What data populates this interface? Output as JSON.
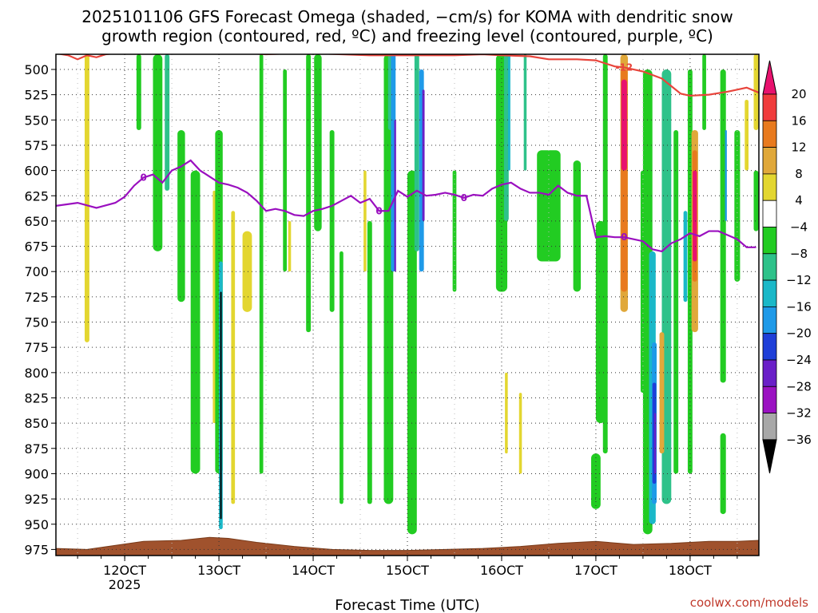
{
  "title_line1": "2025101106 GFS Forecast Omega (shaded, −cm/s) for KOMA with dendritic snow",
  "title_line2": "growth region (contoured, red, ºC) and freezing level (contoured, purple, ºC)",
  "watermark": "coolwx.com/models",
  "colors": {
    "dendritic": "#e8453c",
    "freezing": "#9a0fbf",
    "ground": "#a0522d"
  },
  "chart_data": {
    "type": "heatmap",
    "title": "2025101106 GFS Forecast Omega (shaded, −cm/s) for KOMA with dendritic snow growth region (contoured, red, ºC) and freezing level (contoured, purple, ºC)",
    "xlabel": "Forecast Time (UTC)",
    "ylabel": "",
    "x_ticks": [
      {
        "label": "12OCT",
        "sub": "2025",
        "day": 12
      },
      {
        "label": "13OCT",
        "sub": "",
        "day": 13
      },
      {
        "label": "14OCT",
        "sub": "",
        "day": 14
      },
      {
        "label": "15OCT",
        "sub": "",
        "day": 15
      },
      {
        "label": "16OCT",
        "sub": "",
        "day": 16
      },
      {
        "label": "17OCT",
        "sub": "",
        "day": 17
      },
      {
        "label": "18OCT",
        "sub": "",
        "day": 18
      }
    ],
    "xlim": [
      11.27,
      18.73
    ],
    "ylim": [
      981,
      485
    ],
    "y_ticks": [
      500,
      525,
      550,
      575,
      600,
      625,
      650,
      675,
      700,
      725,
      750,
      775,
      800,
      825,
      850,
      875,
      900,
      925,
      950,
      975
    ],
    "colorbar": {
      "labels": [
        "20",
        "16",
        "12",
        "8",
        "4",
        "−4",
        "−8",
        "−12",
        "−16",
        "−20",
        "−24",
        "−28",
        "−32",
        "−36"
      ],
      "bins": [
        {
          "low": 20,
          "high": 99,
          "color": "#e8126e"
        },
        {
          "low": 16,
          "high": 20,
          "color": "#f03c3c"
        },
        {
          "low": 12,
          "high": 16,
          "color": "#e87a1e"
        },
        {
          "low": 8,
          "high": 12,
          "color": "#e0a83a"
        },
        {
          "low": 4,
          "high": 8,
          "color": "#e3d630"
        },
        {
          "low": -4,
          "high": 4,
          "color": "#ffffff"
        },
        {
          "low": -8,
          "high": -4,
          "color": "#22cc22"
        },
        {
          "low": -12,
          "high": -8,
          "color": "#2ec28a"
        },
        {
          "low": -16,
          "high": -12,
          "color": "#1ab8c8"
        },
        {
          "low": -20,
          "high": -16,
          "color": "#1f9ae8"
        },
        {
          "low": -24,
          "high": -20,
          "color": "#1f3fd8"
        },
        {
          "low": -28,
          "high": -24,
          "color": "#6a1fc8"
        },
        {
          "low": -32,
          "high": -28,
          "color": "#9b12c2"
        },
        {
          "low": -36,
          "high": -32,
          "color": "#a8a8a8"
        },
        {
          "low": -99,
          "high": -36,
          "color": "#000000"
        }
      ]
    },
    "omega_features": [
      {
        "t": 11.6,
        "p0": 485,
        "p1": 770,
        "v": 5,
        "w": 0.05
      },
      {
        "t": 12.15,
        "p0": 485,
        "p1": 560,
        "v": -6,
        "w": 0.05
      },
      {
        "t": 12.35,
        "p0": 485,
        "p1": 680,
        "v": -6,
        "w": 0.1
      },
      {
        "t": 12.45,
        "p0": 485,
        "p1": 620,
        "v": -10,
        "w": 0.05
      },
      {
        "t": 12.6,
        "p0": 560,
        "p1": 730,
        "v": -6,
        "w": 0.08
      },
      {
        "t": 12.75,
        "p0": 600,
        "p1": 900,
        "v": -6,
        "w": 0.1
      },
      {
        "t": 12.95,
        "p0": 620,
        "p1": 850,
        "v": 5,
        "w": 0.03
      },
      {
        "t": 13.0,
        "p0": 560,
        "p1": 900,
        "v": -6,
        "w": 0.08
      },
      {
        "t": 13.02,
        "p0": 690,
        "p1": 955,
        "v": -16,
        "w": 0.04
      },
      {
        "t": 13.02,
        "p0": 720,
        "p1": 945,
        "v": -40,
        "w": 0.015
      },
      {
        "t": 13.15,
        "p0": 640,
        "p1": 930,
        "v": 5,
        "w": 0.04
      },
      {
        "t": 13.3,
        "p0": 660,
        "p1": 740,
        "v": 5,
        "w": 0.1
      },
      {
        "t": 13.45,
        "p0": 485,
        "p1": 900,
        "v": -6,
        "w": 0.04
      },
      {
        "t": 13.7,
        "p0": 500,
        "p1": 700,
        "v": -6,
        "w": 0.04
      },
      {
        "t": 13.75,
        "p0": 650,
        "p1": 700,
        "v": 5,
        "w": 0.03
      },
      {
        "t": 13.95,
        "p0": 485,
        "p1": 760,
        "v": -6,
        "w": 0.05
      },
      {
        "t": 14.05,
        "p0": 485,
        "p1": 660,
        "v": -6,
        "w": 0.08
      },
      {
        "t": 14.2,
        "p0": 560,
        "p1": 740,
        "v": -6,
        "w": 0.05
      },
      {
        "t": 14.3,
        "p0": 680,
        "p1": 930,
        "v": -6,
        "w": 0.04
      },
      {
        "t": 14.55,
        "p0": 600,
        "p1": 700,
        "v": 5,
        "w": 0.03
      },
      {
        "t": 14.6,
        "p0": 650,
        "p1": 930,
        "v": -6,
        "w": 0.05
      },
      {
        "t": 14.8,
        "p0": 485,
        "p1": 930,
        "v": -6,
        "w": 0.1
      },
      {
        "t": 14.82,
        "p0": 485,
        "p1": 560,
        "v": -10,
        "w": 0.05
      },
      {
        "t": 14.85,
        "p0": 485,
        "p1": 700,
        "v": -18,
        "w": 0.05
      },
      {
        "t": 14.87,
        "p0": 550,
        "p1": 700,
        "v": -26,
        "w": 0.02
      },
      {
        "t": 15.05,
        "p0": 600,
        "p1": 960,
        "v": -6,
        "w": 0.1
      },
      {
        "t": 15.1,
        "p0": 485,
        "p1": 680,
        "v": -10,
        "w": 0.05
      },
      {
        "t": 15.15,
        "p0": 500,
        "p1": 700,
        "v": -18,
        "w": 0.05
      },
      {
        "t": 15.17,
        "p0": 520,
        "p1": 650,
        "v": -26,
        "w": 0.025
      },
      {
        "t": 15.5,
        "p0": 600,
        "p1": 720,
        "v": -6,
        "w": 0.04
      },
      {
        "t": 16.0,
        "p0": 485,
        "p1": 720,
        "v": -6,
        "w": 0.12
      },
      {
        "t": 16.05,
        "p0": 485,
        "p1": 650,
        "v": -10,
        "w": 0.05
      },
      {
        "t": 16.08,
        "p0": 485,
        "p1": 600,
        "v": -14,
        "w": 0.025
      },
      {
        "t": 16.05,
        "p0": 800,
        "p1": 880,
        "v": 5,
        "w": 0.03
      },
      {
        "t": 16.2,
        "p0": 820,
        "p1": 900,
        "v": 5,
        "w": 0.03
      },
      {
        "t": 16.25,
        "p0": 485,
        "p1": 600,
        "v": -10,
        "w": 0.03
      },
      {
        "t": 16.5,
        "p0": 580,
        "p1": 690,
        "v": -6,
        "w": 0.25
      },
      {
        "t": 16.8,
        "p0": 590,
        "p1": 720,
        "v": -6,
        "w": 0.08
      },
      {
        "t": 17.05,
        "p0": 650,
        "p1": 850,
        "v": -6,
        "w": 0.1
      },
      {
        "t": 17.1,
        "p0": 485,
        "p1": 880,
        "v": -6,
        "w": 0.05
      },
      {
        "t": 17.0,
        "p0": 880,
        "p1": 935,
        "v": -6,
        "w": 0.1
      },
      {
        "t": 17.3,
        "p0": 485,
        "p1": 740,
        "v": 8,
        "w": 0.08
      },
      {
        "t": 17.3,
        "p0": 500,
        "p1": 720,
        "v": 13,
        "w": 0.07
      },
      {
        "t": 17.3,
        "p0": 510,
        "p1": 600,
        "v": 22,
        "w": 0.06
      },
      {
        "t": 17.5,
        "p0": 600,
        "p1": 820,
        "v": -6,
        "w": 0.05
      },
      {
        "t": 17.55,
        "p0": 500,
        "p1": 960,
        "v": -6,
        "w": 0.1
      },
      {
        "t": 17.6,
        "p0": 680,
        "p1": 950,
        "v": -14,
        "w": 0.07
      },
      {
        "t": 17.62,
        "p0": 770,
        "p1": 930,
        "v": -18,
        "w": 0.05
      },
      {
        "t": 17.62,
        "p0": 810,
        "p1": 910,
        "v": -22,
        "w": 0.04
      },
      {
        "t": 17.63,
        "p0": 840,
        "p1": 900,
        "v": -26,
        "w": 0.02
      },
      {
        "t": 17.75,
        "p0": 500,
        "p1": 930,
        "v": -10,
        "w": 0.1
      },
      {
        "t": 17.85,
        "p0": 560,
        "p1": 900,
        "v": -6,
        "w": 0.05
      },
      {
        "t": 18.0,
        "p0": 500,
        "p1": 900,
        "v": -6,
        "w": 0.05
      },
      {
        "t": 17.95,
        "p0": 640,
        "p1": 730,
        "v": -14,
        "w": 0.04
      },
      {
        "t": 17.7,
        "p0": 760,
        "p1": 880,
        "v": 10,
        "w": 0.05
      },
      {
        "t": 18.05,
        "p0": 560,
        "p1": 760,
        "v": 8,
        "w": 0.07
      },
      {
        "t": 18.05,
        "p0": 580,
        "p1": 710,
        "v": 13,
        "w": 0.05
      },
      {
        "t": 18.05,
        "p0": 600,
        "p1": 690,
        "v": 22,
        "w": 0.045
      },
      {
        "t": 18.15,
        "p0": 485,
        "p1": 560,
        "v": -6,
        "w": 0.04
      },
      {
        "t": 18.35,
        "p0": 500,
        "p1": 810,
        "v": -6,
        "w": 0.06
      },
      {
        "t": 18.38,
        "p0": 560,
        "p1": 650,
        "v": -18,
        "w": 0.02
      },
      {
        "t": 18.35,
        "p0": 860,
        "p1": 940,
        "v": -6,
        "w": 0.06
      },
      {
        "t": 18.5,
        "p0": 560,
        "p1": 710,
        "v": -6,
        "w": 0.06
      },
      {
        "t": 18.7,
        "p0": 485,
        "p1": 560,
        "v": 5,
        "w": 0.05
      },
      {
        "t": 18.6,
        "p0": 530,
        "p1": 600,
        "v": 5,
        "w": 0.04
      },
      {
        "t": 18.7,
        "p0": 600,
        "p1": 660,
        "v": -6,
        "w": 0.05
      }
    ],
    "freezing_level": {
      "label": "0",
      "t": [
        11.27,
        11.5,
        11.7,
        11.9,
        12.0,
        12.1,
        12.2,
        12.3,
        12.4,
        12.5,
        12.6,
        12.7,
        12.8,
        12.9,
        13.0,
        13.1,
        13.2,
        13.3,
        13.4,
        13.5,
        13.6,
        13.7,
        13.8,
        13.9,
        14.0,
        14.1,
        14.2,
        14.3,
        14.4,
        14.5,
        14.6,
        14.7,
        14.8,
        14.9,
        15.0,
        15.1,
        15.2,
        15.3,
        15.4,
        15.5,
        15.6,
        15.7,
        15.8,
        15.9,
        16.0,
        16.1,
        16.2,
        16.3,
        16.4,
        16.5,
        16.6,
        16.7,
        16.8,
        16.9,
        17.0,
        17.1,
        17.2,
        17.3,
        17.4,
        17.5,
        17.6,
        17.7,
        17.8,
        17.9,
        18.0,
        18.1,
        18.2,
        18.3,
        18.4,
        18.5,
        18.6,
        18.7
      ],
      "p": [
        635,
        632,
        637,
        632,
        626,
        615,
        607,
        604,
        612,
        600,
        596,
        590,
        600,
        606,
        612,
        614,
        617,
        622,
        630,
        640,
        638,
        640,
        644,
        645,
        640,
        638,
        635,
        630,
        625,
        632,
        628,
        640,
        640,
        620,
        626,
        620,
        625,
        624,
        622,
        624,
        627,
        624,
        625,
        618,
        614,
        612,
        618,
        622,
        622,
        624,
        615,
        622,
        625,
        625,
        666,
        665,
        666,
        666,
        668,
        670,
        678,
        680,
        672,
        668,
        662,
        665,
        660,
        660,
        664,
        668,
        676,
        676
      ]
    },
    "dendritic_contour": {
      "label": "-12",
      "t": [
        11.27,
        11.4,
        11.5,
        11.6,
        11.7,
        11.8,
        12.0,
        12.2,
        12.5,
        12.8,
        13.0,
        13.3,
        13.5,
        13.8,
        14.0,
        14.3,
        14.6,
        14.9,
        15.2,
        15.5,
        15.8,
        16.0,
        16.3,
        16.5,
        16.8,
        17.0,
        17.2,
        17.3,
        17.5,
        17.7,
        17.9,
        18.0,
        18.2,
        18.4,
        18.5,
        18.6,
        18.73
      ],
      "p": [
        484,
        486,
        490,
        486,
        488,
        485,
        483,
        483,
        484,
        484,
        483,
        484,
        485,
        484,
        484,
        485,
        486,
        486,
        486,
        486,
        485,
        486,
        487,
        490,
        490,
        491,
        497,
        498,
        502,
        509,
        524,
        526,
        525,
        522,
        520,
        518,
        523
      ]
    },
    "ground_surface": {
      "t": [
        11.27,
        11.6,
        12.2,
        12.6,
        12.9,
        13.1,
        13.4,
        13.8,
        14.2,
        14.6,
        15.0,
        15.4,
        15.8,
        16.2,
        16.6,
        17.0,
        17.4,
        17.8,
        18.2,
        18.5,
        18.73
      ],
      "p": [
        974,
        975,
        967,
        966,
        963,
        964,
        968,
        972,
        975,
        976,
        976,
        975,
        974,
        972,
        969,
        967,
        970,
        969,
        967,
        967,
        966
      ]
    }
  }
}
